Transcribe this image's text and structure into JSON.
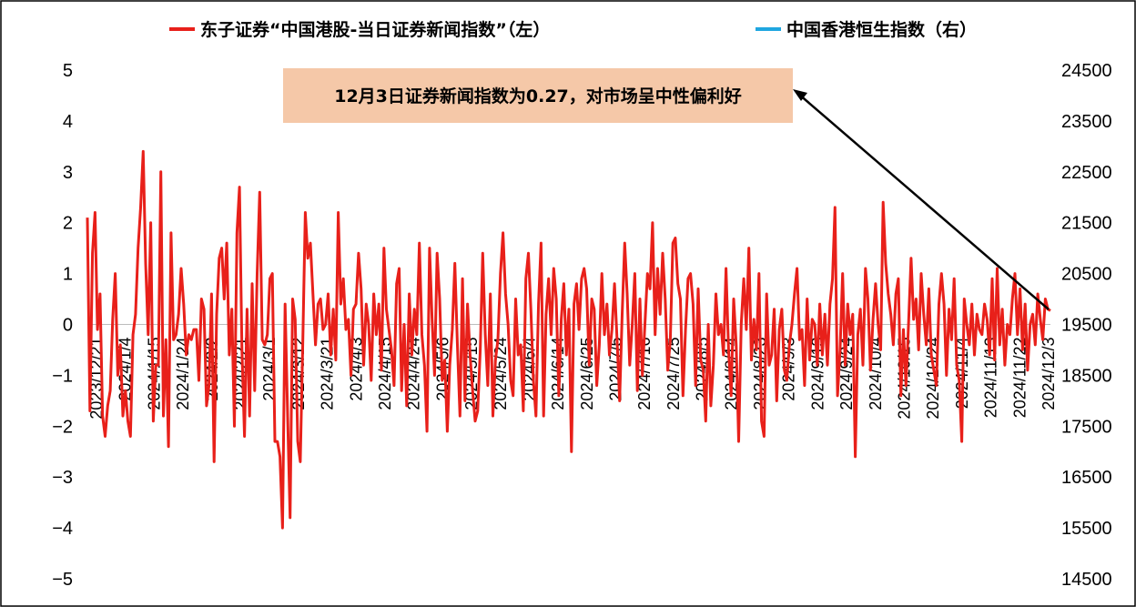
{
  "chart_data": {
    "type": "line",
    "legend": {
      "placement": "top",
      "items": [
        {
          "label": "东子证券“中国港股-当日证券新闻指数”（左）",
          "color": "#e8201a"
        },
        {
          "label": "中国香港恒生指数（右）",
          "color": "#1fa6e0"
        }
      ]
    },
    "annotation": {
      "text": "12月3日证券新闻指数为0.27，对市场呈中性偏利好",
      "box_color": "#f5c8a8"
    },
    "x_tick_labels": [
      "2023/12/21",
      "2024/1/4",
      "2024/1/15",
      "2024/1/24",
      "2024/2/2",
      "2024/2/21",
      "2024/3/1",
      "2024/3/12",
      "2024/3/21",
      "2024/4/3",
      "2024/4/15",
      "2024/4/24",
      "2024/5/6",
      "2024/5/15",
      "2024/5/24",
      "2024/6/4",
      "2024/6/14",
      "2024/6/25",
      "2024/7/5",
      "2024/7/16",
      "2024/7/25",
      "2024/8/5",
      "2024/8/14",
      "2024/8/23",
      "2024/9/3",
      "2024/9/13",
      "2024/9/24",
      "2024/10/4",
      "2024/10/15",
      "2024/10/24",
      "2024/11/4",
      "2024/11/13",
      "2024/11/22",
      "2024/12/3"
    ],
    "y_left": {
      "min": -5,
      "max": 5,
      "ticks": [
        "5",
        "4",
        "3",
        "2",
        "1",
        "0",
        "−1",
        "−2",
        "−3",
        "−4",
        "−5"
      ]
    },
    "y_right": {
      "min": 14500,
      "max": 24500,
      "ticks": [
        "24500",
        "23500",
        "22500",
        "21500",
        "20500",
        "19500",
        "18500",
        "17500",
        "16500",
        "15500",
        "14500"
      ]
    },
    "series": [
      {
        "name": "东子证券“中国港股-当日证券新闻指数”（左）",
        "axis": "left",
        "color": "#e8201a",
        "values": [
          2.1,
          -1.7,
          1.4,
          2.2,
          -0.1,
          0.6,
          -1.8,
          -2.2,
          -1.6,
          -1.3,
          0.1,
          1.0,
          -1.0,
          -0.4,
          -1.8,
          -1.3,
          -1.9,
          -2.2,
          -0.2,
          0.2,
          1.5,
          2.3,
          3.4,
          1.2,
          -0.2,
          2.0,
          -1.9,
          -0.8,
          -0.8,
          3.0,
          -1.8,
          -0.3,
          -2.4,
          1.8,
          -0.3,
          -0.2,
          0.2,
          1.1,
          0.4,
          -0.6,
          -0.2,
          -0.3,
          -0.1,
          -0.1,
          -1.1,
          0.5,
          0.3,
          -1.6,
          -1.2,
          0.6,
          -2.7,
          0.2,
          1.3,
          1.5,
          0.5,
          1.6,
          -0.6,
          0.3,
          -2.0,
          1.8,
          2.7,
          -0.5,
          -2.2,
          0.3,
          -1.8,
          0.8,
          -1.3,
          1.0,
          2.6,
          -0.3,
          -0.4,
          -0.2,
          0.9,
          1.0,
          -2.3,
          -2.3,
          -2.6,
          -4.0,
          0.4,
          -1.8,
          -3.8,
          0.5,
          0.1,
          -2.3,
          -2.7,
          -0.3,
          2.2,
          1.3,
          1.6,
          0.6,
          -0.4,
          0.4,
          0.5,
          -0.1,
          0.0,
          0.6,
          -0.6,
          0.3,
          -0.7,
          2.2,
          0.4,
          0.9,
          -0.1,
          0.1,
          -1.0,
          0.3,
          0.4,
          1.4,
          0.7,
          -0.8,
          0.4,
          0.0,
          -1.1,
          0.6,
          -0.2,
          0.4,
          -0.9,
          1.5,
          0.3,
          -0.1,
          -0.5,
          -1.2,
          0.8,
          1.1,
          -1.3,
          0.0,
          -1.6,
          0.6,
          -0.6,
          0.3,
          -0.2,
          1.6,
          -0.2,
          -0.8,
          -2.1,
          1.5,
          0.1,
          -1.0,
          1.4,
          0.5,
          -1.1,
          -0.7,
          -2.1,
          -0.8,
          -0.1,
          1.2,
          -0.4,
          -1.8,
          0.9,
          -1.5,
          0.4,
          -0.6,
          -1.3,
          -1.9,
          -1.7,
          -0.5,
          1.4,
          -0.2,
          -1.2,
          0.6,
          -1.8,
          -0.7,
          -0.3,
          1.0,
          1.8,
          0.6,
          0.0,
          -1.1,
          -1.4,
          0.5,
          -0.6,
          -0.4,
          -1.7,
          0.9,
          1.4,
          0.3,
          -1.1,
          -1.8,
          0.4,
          1.6,
          -1.8,
          0.2,
          0.9,
          -0.2,
          1.1,
          0.5,
          -1.4,
          0.1,
          0.8,
          -0.6,
          0.3,
          -2.5,
          0.4,
          0.8,
          -0.1,
          0.9,
          1.1,
          0.7,
          -0.8,
          0.5,
          0.3,
          -1.2,
          -0.4,
          1.0,
          -0.2,
          0.4,
          -0.6,
          -0.1,
          0.8,
          -0.3,
          -1.5,
          0.2,
          1.6,
          0.6,
          -0.8,
          0.0,
          1.0,
          -1.3,
          0.5,
          -1.0,
          0.0,
          1.0,
          0.7,
          2.0,
          -0.2,
          1.1,
          0.2,
          1.4,
          0.5,
          -0.9,
          -0.3,
          1.6,
          1.7,
          0.8,
          0.5,
          -1.4,
          -0.1,
          0.9,
          1.0,
          0.4,
          -1.2,
          0.7,
          -0.7,
          -0.9,
          -1.9,
          0.0,
          -1.6,
          -0.8,
          0.6,
          -0.2,
          0.0,
          -0.6,
          1.1,
          -0.5,
          -1.4,
          0.5,
          -0.4,
          -2.3,
          0.0,
          0.9,
          -0.1,
          1.5,
          -0.7,
          0.1,
          -0.5,
          1.0,
          -1.9,
          -2.2,
          0.6,
          -0.8,
          -0.6,
          0.3,
          -1.5,
          -0.1,
          0.3,
          -0.9,
          -1.1,
          -0.4,
          0.0,
          0.6,
          1.1,
          -0.3,
          -0.1,
          -1.2,
          0.5,
          -0.7,
          0.1,
          0.0,
          -0.8,
          0.4,
          -0.6,
          0.2,
          -0.8,
          0.4,
          0.9,
          2.3,
          -1.4,
          -0.5,
          1.0,
          -0.8,
          0.4,
          -0.2,
          0.2,
          -2.6,
          -0.2,
          0.3,
          -0.8,
          1.1,
          0.5,
          -0.9,
          0.1,
          0.8,
          0.0,
          -0.5,
          2.4,
          1.2,
          0.6,
          0.2,
          -0.4,
          0.6,
          0.9,
          -1.4,
          -0.1,
          -1.2,
          0.0,
          1.3,
          0.1,
          0.5,
          -0.5,
          1.0,
          0.2,
          -0.4,
          0.7,
          -0.6,
          -0.9,
          -1.2,
          0.4,
          1.0,
          0.4,
          -1.0,
          0.3,
          -0.3,
          0.9,
          -0.8,
          -1.1,
          -2.3,
          0.5,
          0.0,
          -0.4,
          0.4,
          -0.6,
          0.2,
          -0.1,
          -0.2,
          0.4,
          0.1,
          -0.6,
          0.9,
          -0.7,
          1.1,
          -0.4,
          0.3,
          -0.8,
          0.0,
          -0.2,
          0.5,
          1.0,
          -0.2,
          0.7,
          -0.5,
          0.4,
          -0.9,
          0.0,
          0.2,
          -0.4,
          0.6,
          0.1,
          -0.3,
          0.5,
          0.3,
          0.27
        ]
      },
      {
        "name": "中国香港恒生指数（右）",
        "axis": "right",
        "color": "#1fa6e0",
        "values": []
      }
    ]
  }
}
